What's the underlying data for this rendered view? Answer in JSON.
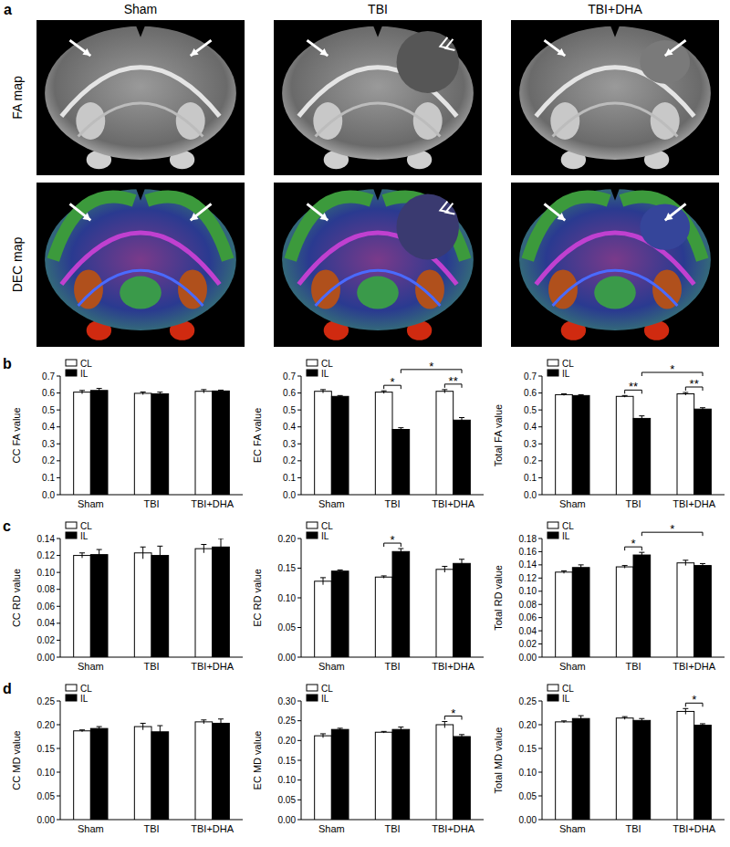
{
  "panel_labels": [
    "a",
    "b",
    "c",
    "d"
  ],
  "images": {
    "columns": [
      "Sham",
      "TBI",
      "TBI+DHA"
    ],
    "rows": [
      "FA map",
      "DEC map"
    ]
  },
  "chart_data": [
    {
      "type": "bar",
      "ylabel": "CC FA value",
      "categories": [
        "Sham",
        "TBI",
        "TBI+DHA"
      ],
      "series": [
        {
          "name": "CL",
          "color": "#ffffff",
          "values": [
            0.605,
            0.598,
            0.61
          ],
          "errors": [
            0.01,
            0.008,
            0.01
          ]
        },
        {
          "name": "IL",
          "color": "#000000",
          "values": [
            0.615,
            0.595,
            0.612
          ],
          "errors": [
            0.012,
            0.01,
            0.005
          ]
        }
      ],
      "ylim": [
        0,
        0.7
      ],
      "yticks": [
        {
          "value": 0,
          "label": "0.0"
        },
        0.1,
        0.2,
        0.3,
        0.4,
        0.5,
        0.6,
        0.7
      ],
      "legend": "upper left"
    },
    {
      "type": "bar",
      "ylabel": "EC FA value",
      "categories": [
        "Sham",
        "TBI",
        "TBI+DHA"
      ],
      "series": [
        {
          "name": "CL",
          "color": "#ffffff",
          "values": [
            0.61,
            0.605,
            0.61
          ],
          "errors": [
            0.01,
            0.008,
            0.01
          ]
        },
        {
          "name": "IL",
          "color": "#000000",
          "values": [
            0.58,
            0.385,
            0.44
          ],
          "errors": [
            0.005,
            0.01,
            0.015
          ]
        }
      ],
      "ylim": [
        0,
        0.7
      ],
      "yticks": [
        {
          "value": 0,
          "label": "0.0"
        },
        0.1,
        0.2,
        0.3,
        0.4,
        0.5,
        0.6,
        0.7
      ],
      "legend": "upper left",
      "annotations": [
        {
          "text": "*",
          "category": 1,
          "series": [
            0,
            1
          ]
        },
        {
          "text": "**",
          "category": 2,
          "series": [
            0,
            1
          ]
        },
        {
          "text": "*",
          "series": 1,
          "categories": [
            1,
            2
          ]
        }
      ]
    },
    {
      "type": "bar",
      "ylabel": "Total  FA value",
      "categories": [
        "Sham",
        "TBI",
        "TBI+DHA"
      ],
      "series": [
        {
          "name": "CL",
          "color": "#ffffff",
          "values": [
            0.59,
            0.58,
            0.595
          ],
          "errors": [
            0.005,
            0.005,
            0.008
          ]
        },
        {
          "name": "IL",
          "color": "#000000",
          "values": [
            0.585,
            0.45,
            0.505
          ],
          "errors": [
            0.005,
            0.015,
            0.008
          ]
        }
      ],
      "ylim": [
        0,
        0.7
      ],
      "yticks": [
        {
          "value": 0,
          "label": "0.0"
        },
        0.1,
        0.2,
        0.3,
        0.4,
        0.5,
        0.6,
        0.7
      ],
      "legend": "upper left",
      "annotations": [
        {
          "text": "**",
          "category": 1,
          "series": [
            0,
            1
          ]
        },
        {
          "text": "**",
          "category": 2,
          "series": [
            0,
            1
          ]
        },
        {
          "text": "*",
          "series": 1,
          "categories": [
            1,
            2
          ]
        }
      ]
    },
    {
      "type": "bar",
      "ylabel": "CC RD value",
      "categories": [
        "Sham",
        "TBI",
        "TBI+DHA"
      ],
      "series": [
        {
          "name": "CL",
          "color": "#ffffff",
          "values": [
            0.12,
            0.123,
            0.128
          ],
          "errors": [
            0.003,
            0.007,
            0.005
          ]
        },
        {
          "name": "IL",
          "color": "#000000",
          "values": [
            0.121,
            0.12,
            0.13
          ],
          "errors": [
            0.006,
            0.011,
            0.01
          ]
        }
      ],
      "ylim": [
        0,
        0.14
      ],
      "yticks": [
        {
          "value": 0,
          "label": "0.00"
        },
        0.02,
        0.04,
        0.06,
        0.08,
        {
          "value": 0.1,
          "label": "0.10"
        },
        0.12,
        0.14
      ],
      "legend": "upper left"
    },
    {
      "type": "bar",
      "ylabel": "EC RD value",
      "categories": [
        "Sham",
        "TBI",
        "TBI+DHA"
      ],
      "series": [
        {
          "name": "CL",
          "color": "#ffffff",
          "values": [
            0.128,
            0.135,
            0.148
          ],
          "errors": [
            0.006,
            0.002,
            0.005
          ]
        },
        {
          "name": "IL",
          "color": "#000000",
          "values": [
            0.145,
            0.178,
            0.158
          ],
          "errors": [
            0.002,
            0.005,
            0.007
          ]
        }
      ],
      "ylim": [
        0,
        0.2
      ],
      "yticks": [
        {
          "value": 0,
          "label": "0.00"
        },
        0.05,
        {
          "value": 0.1,
          "label": "0.10"
        },
        0.15,
        {
          "value": 0.2,
          "label": "0.20"
        }
      ],
      "legend": "upper left",
      "annotations": [
        {
          "text": "*",
          "category": 1,
          "series": [
            0,
            1
          ]
        }
      ]
    },
    {
      "type": "bar",
      "ylabel": "Total RD value",
      "categories": [
        "Sham",
        "TBI",
        "TBI+DHA"
      ],
      "series": [
        {
          "name": "CL",
          "color": "#ffffff",
          "values": [
            0.129,
            0.137,
            0.143
          ],
          "errors": [
            0.002,
            0.002,
            0.004
          ]
        },
        {
          "name": "IL",
          "color": "#000000",
          "values": [
            0.136,
            0.155,
            0.139
          ],
          "errors": [
            0.004,
            0.004,
            0.003
          ]
        }
      ],
      "ylim": [
        0,
        0.18
      ],
      "yticks": [
        {
          "value": 0,
          "label": "0.00"
        },
        0.02,
        0.04,
        0.06,
        0.08,
        {
          "value": 0.1,
          "label": "0.10"
        },
        0.12,
        0.14,
        0.16,
        0.18
      ],
      "legend": "upper left",
      "annotations": [
        {
          "text": "*",
          "category": 1,
          "series": [
            0,
            1
          ]
        },
        {
          "text": "*",
          "series": 1,
          "categories": [
            1,
            2
          ]
        }
      ]
    },
    {
      "type": "bar",
      "ylabel": "CC MD value",
      "categories": [
        "Sham",
        "TBI",
        "TBI+DHA"
      ],
      "series": [
        {
          "name": "CL",
          "color": "#ffffff",
          "values": [
            0.187,
            0.196,
            0.206
          ],
          "errors": [
            0.002,
            0.007,
            0.004
          ]
        },
        {
          "name": "IL",
          "color": "#000000",
          "values": [
            0.192,
            0.185,
            0.203
          ],
          "errors": [
            0.004,
            0.013,
            0.009
          ]
        }
      ],
      "ylim": [
        0,
        0.25
      ],
      "yticks": [
        {
          "value": 0,
          "label": "0.00"
        },
        0.05,
        {
          "value": 0.1,
          "label": "0.10"
        },
        0.15,
        {
          "value": 0.2,
          "label": "0.20"
        },
        0.25
      ],
      "legend": "upper left"
    },
    {
      "type": "bar",
      "ylabel": "EC MD value",
      "categories": [
        "Sham",
        "TBI",
        "TBI+DHA"
      ],
      "series": [
        {
          "name": "CL",
          "color": "#ffffff",
          "values": [
            0.212,
            0.221,
            0.24
          ],
          "errors": [
            0.005,
            0.002,
            0.008
          ]
        },
        {
          "name": "IL",
          "color": "#000000",
          "values": [
            0.228,
            0.228,
            0.21
          ],
          "errors": [
            0.003,
            0.006,
            0.005
          ]
        }
      ],
      "ylim": [
        0,
        0.3
      ],
      "yticks": [
        {
          "value": 0,
          "label": "0.00"
        },
        0.05,
        {
          "value": 0.1,
          "label": "0.10"
        },
        0.15,
        {
          "value": 0.2,
          "label": "0.20"
        },
        0.25,
        {
          "value": 0.3,
          "label": "0.30"
        }
      ],
      "legend": "upper left",
      "annotations": [
        {
          "text": "*",
          "category": 2,
          "series": [
            0,
            1
          ]
        }
      ]
    },
    {
      "type": "bar",
      "ylabel": "Total MD value",
      "categories": [
        "Sham",
        "TBI",
        "TBI+DHA"
      ],
      "series": [
        {
          "name": "CL",
          "color": "#ffffff",
          "values": [
            0.206,
            0.214,
            0.228
          ],
          "errors": [
            0.002,
            0.003,
            0.006
          ]
        },
        {
          "name": "IL",
          "color": "#000000",
          "values": [
            0.213,
            0.209,
            0.199
          ],
          "errors": [
            0.006,
            0.004,
            0.003
          ]
        }
      ],
      "ylim": [
        0,
        0.25
      ],
      "yticks": [
        {
          "value": 0,
          "label": "0.00"
        },
        0.05,
        {
          "value": 0.1,
          "label": "0.10"
        },
        0.15,
        {
          "value": 0.2,
          "label": "0.20"
        },
        0.25
      ],
      "legend": "upper left",
      "annotations": [
        {
          "text": "*",
          "category": 2,
          "series": [
            0,
            1
          ]
        }
      ]
    }
  ]
}
